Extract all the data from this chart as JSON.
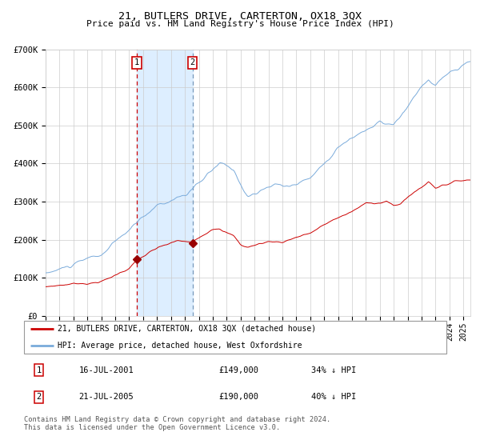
{
  "title": "21, BUTLERS DRIVE, CARTERTON, OX18 3QX",
  "subtitle": "Price paid vs. HM Land Registry's House Price Index (HPI)",
  "legend_line1": "21, BUTLERS DRIVE, CARTERTON, OX18 3QX (detached house)",
  "legend_line2": "HPI: Average price, detached house, West Oxfordshire",
  "transaction1_date": "16-JUL-2001",
  "transaction1_price": 149000,
  "transaction1_label": "34% ↓ HPI",
  "transaction1_year": 2001.54,
  "transaction2_date": "21-JUL-2005",
  "transaction2_price": 190000,
  "transaction2_label": "40% ↓ HPI",
  "transaction2_year": 2005.55,
  "red_line_color": "#cc0000",
  "blue_line_color": "#7aabdb",
  "shade_color": "#ddeeff",
  "vline1_color": "#cc0000",
  "vline2_color": "#7799bb",
  "grid_color": "#cccccc",
  "background_color": "#ffffff",
  "footnote": "Contains HM Land Registry data © Crown copyright and database right 2024.\nThis data is licensed under the Open Government Licence v3.0.",
  "ylim": [
    0,
    700000
  ],
  "xlim_start": 1995.0,
  "xlim_end": 2025.5
}
